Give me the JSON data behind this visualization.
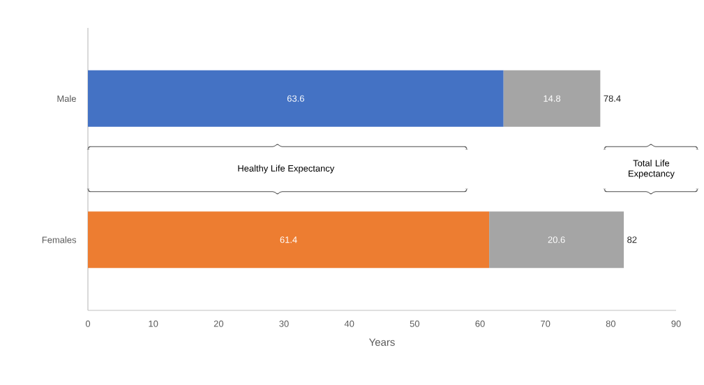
{
  "chart_data": {
    "type": "bar",
    "orientation": "horizontal",
    "stacked": true,
    "categories": [
      "Male",
      "Females"
    ],
    "series": [
      {
        "colors": [
          "#4472c4",
          "#ed7d31"
        ],
        "values": [
          63.6,
          61.4
        ]
      },
      {
        "color": "#a5a5a5",
        "values": [
          14.8,
          20.6
        ]
      }
    ],
    "data_labels": true,
    "totals": [
      "78.4",
      "82"
    ],
    "xlim": [
      0,
      90
    ],
    "xticks": [
      0,
      10,
      20,
      30,
      40,
      50,
      60,
      70,
      80,
      90
    ],
    "xlabel": "Years",
    "annotations": [
      "Healthy Life Expectancy",
      "Total Life Expectancy"
    ],
    "grid": false
  }
}
